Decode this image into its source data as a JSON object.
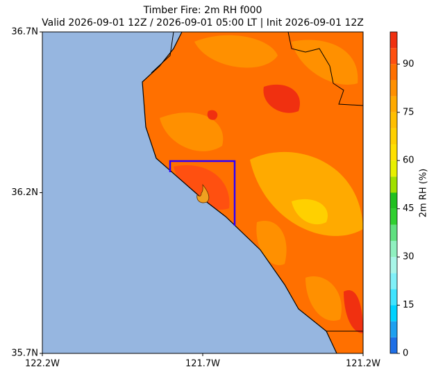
{
  "chart_data": {
    "type": "map",
    "title": "Timber Fire: 2m RH f000",
    "subtitle": "Valid 2026-09-01 12Z / 2026-09-01 05:00 LT | Init 2026-09-01 12Z",
    "xlim": [
      -122.2,
      -121.2
    ],
    "xticks": [
      {
        "value": -122.2,
        "label": "122.2W"
      },
      {
        "value": -121.7,
        "label": "121.7W"
      },
      {
        "value": -121.2,
        "label": "121.2W"
      }
    ],
    "ylim": [
      35.7,
      36.7
    ],
    "yticks": [
      {
        "value": 35.7,
        "label": "35.7N"
      },
      {
        "value": 36.2,
        "label": "36.2N"
      },
      {
        "value": 36.7,
        "label": "36.7N"
      }
    ],
    "colorbar": {
      "label": "2m RH (%)",
      "lim": [
        0,
        100
      ],
      "ticks": [
        0,
        15,
        30,
        45,
        60,
        75,
        90
      ],
      "levels": [
        0,
        5,
        10,
        15,
        20,
        25,
        30,
        35,
        40,
        45,
        50,
        55,
        60,
        65,
        70,
        75,
        80,
        85,
        90,
        95,
        100
      ],
      "colors": [
        "#1e6fe6",
        "#1ea0f0",
        "#00d2ff",
        "#40e4ff",
        "#80f0f8",
        "#a8f5e8",
        "#90f0c0",
        "#60e080",
        "#30d030",
        "#20c020",
        "#a0e000",
        "#e8f000",
        "#ffe000",
        "#ffd000",
        "#ffbf00",
        "#ffaa00",
        "#ff9000",
        "#ff7000",
        "#ff5010",
        "#f03010"
      ]
    }
  }
}
